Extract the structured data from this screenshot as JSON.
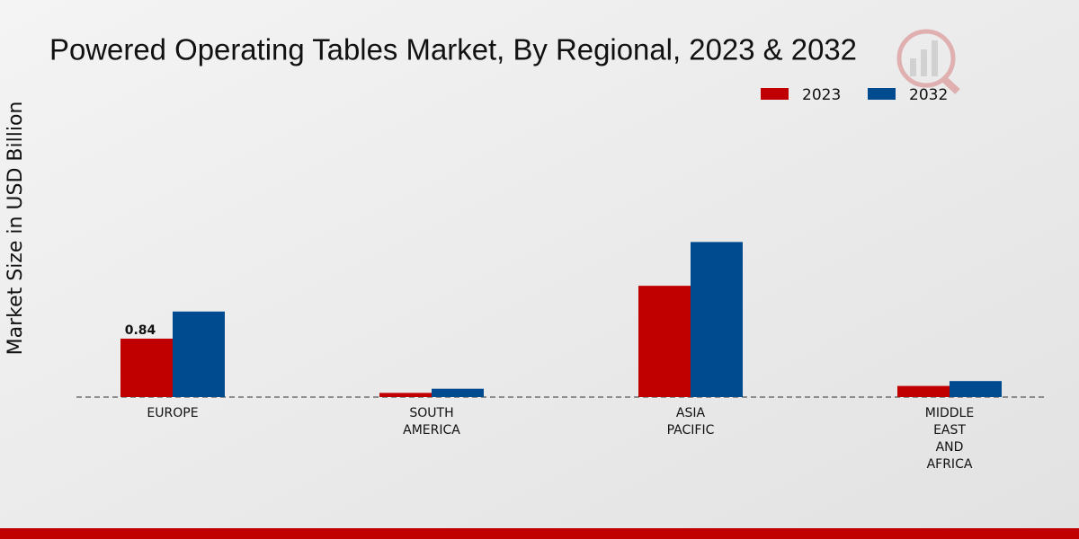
{
  "chart_data": {
    "type": "bar",
    "title": "Powered Operating Tables Market, By Regional, 2023 & 2032",
    "y_label": "Market Size in USD Billion",
    "categories": [
      "EUROPE",
      "SOUTH AMERICA",
      "ASIA PACIFIC",
      "MIDDLE EAST AND AFRICA"
    ],
    "series": [
      {
        "name": "2023",
        "color": "#c00000",
        "values": [
          0.84,
          0.06,
          1.6,
          0.16
        ],
        "value_labels": [
          "0.84",
          null,
          null,
          null
        ]
      },
      {
        "name": "2032",
        "color": "#004a8f",
        "values": [
          1.23,
          0.12,
          2.23,
          0.23
        ]
      }
    ],
    "ylim": [
      0,
      4.4
    ],
    "legend": "top-right"
  }
}
